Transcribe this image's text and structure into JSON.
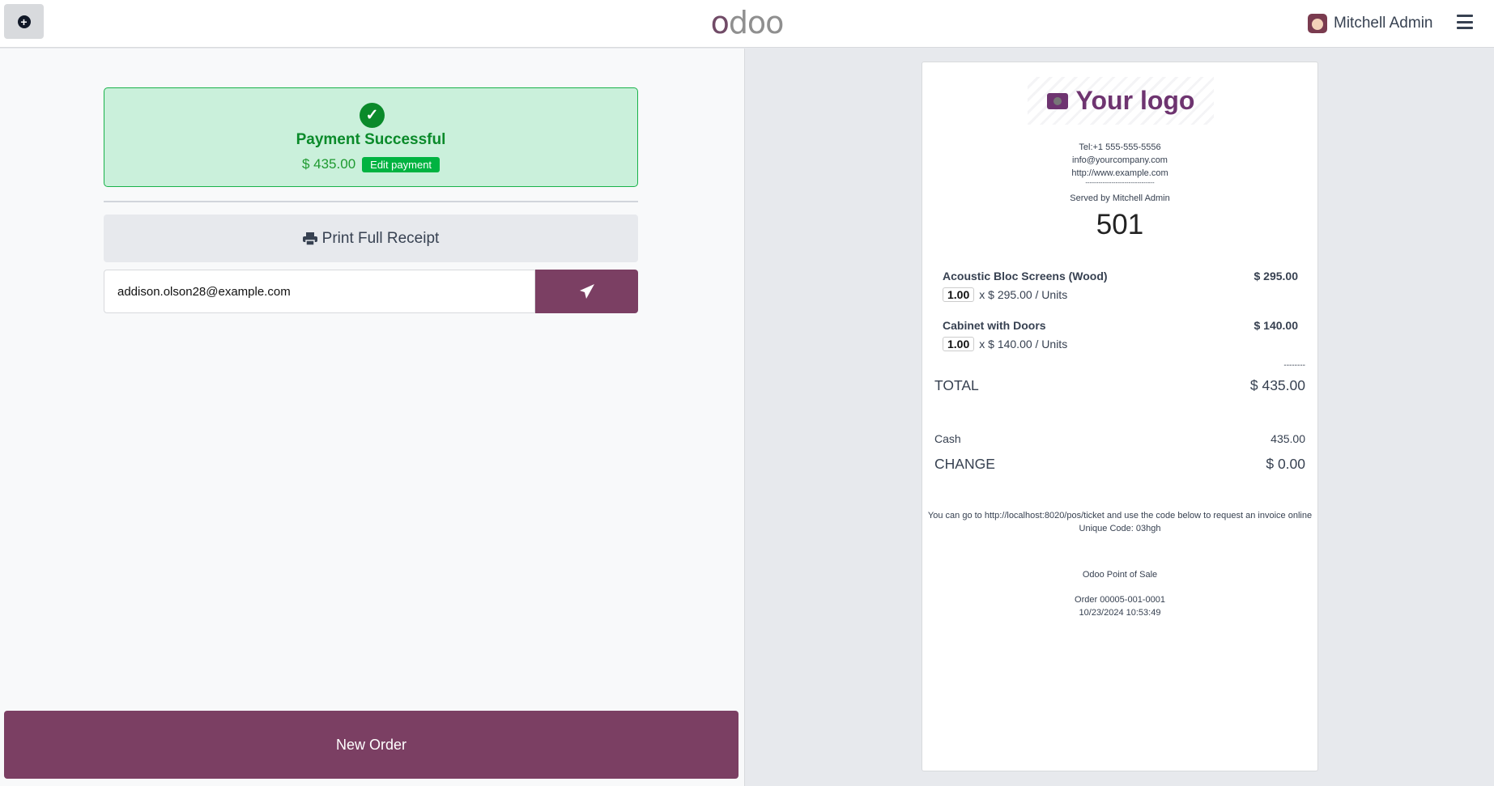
{
  "header": {
    "logo": "odoo",
    "user_name": "Mitchell Admin",
    "icons": {
      "new": "plus-circle-icon",
      "menu": "hamburger-icon"
    }
  },
  "payment": {
    "status": "Payment Successful",
    "amount": "$ 435.00",
    "edit_label": "Edit payment",
    "icon": "check-circle-icon"
  },
  "actions": {
    "print_label": "Print Full Receipt",
    "email_value": "addison.olson28@example.com",
    "send_icon": "paper-plane-icon",
    "new_order_label": "New Order"
  },
  "receipt": {
    "logo_text": "Your logo",
    "tel": "Tel:+1 555-555-5556",
    "email": "info@yourcompany.com",
    "website": "http://www.example.com",
    "separator": "--------------------------------",
    "served_by": "Served by Mitchell Admin",
    "number": "501",
    "lines": [
      {
        "name": "Acoustic Bloc Screens (Wood)",
        "qty": "1.00",
        "unit": "x $ 295.00 / Units",
        "price": "$ 295.00"
      },
      {
        "name": "Cabinet with Doors",
        "qty": "1.00",
        "unit": "x $ 140.00 / Units",
        "price": "$ 140.00"
      }
    ],
    "total_sep": "--------",
    "total_label": "TOTAL",
    "total": "$ 435.00",
    "payment_method": "Cash",
    "payment_amount": "435.00",
    "change_label": "CHANGE",
    "change": "$ 0.00",
    "invoice_note": "You can go to http://localhost:8020/pos/ticket and use the code below to request an invoice online",
    "unique_code": "Unique Code: 03hgh",
    "footer": "Odoo Point of Sale",
    "order": "Order 00005-001-0001",
    "date": "10/23/2024 10:53:49"
  },
  "colors": {
    "brand": "#7b3f63",
    "success": "#0a8a2a",
    "success_bg": "#caf0db"
  }
}
